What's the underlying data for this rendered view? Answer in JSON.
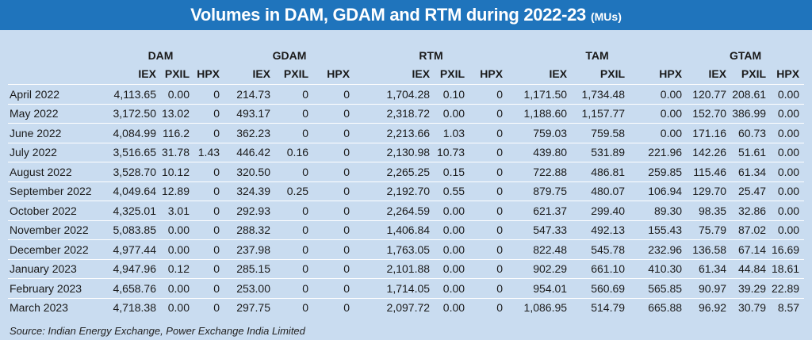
{
  "title": "Volumes in DAM, GDAM and RTM during 2022-23",
  "unit": "(MUs)",
  "groups": [
    "DAM",
    "GDAM",
    "RTM",
    "TAM",
    "GTAM"
  ],
  "subheaders": [
    [
      "IEX",
      "PXIL",
      "HPX"
    ],
    [
      "IEX",
      "PXIL",
      "HPX"
    ],
    [
      "IEX",
      "PXIL",
      "HPX"
    ],
    [
      "IEX",
      "PXIL",
      "HPX"
    ],
    [
      "IEX",
      "PXIL",
      "HPX"
    ]
  ],
  "rows": [
    [
      "April 2022",
      "4,113.65",
      "0.00",
      "0",
      "214.73",
      "0",
      "0",
      "1,704.28",
      "0.10",
      "0",
      "1,171.50",
      "1,734.48",
      "0.00",
      "120.77",
      "208.61",
      "0.00"
    ],
    [
      "May 2022",
      "3,172.50",
      "13.02",
      "0",
      "493.17",
      "0",
      "0",
      "2,318.72",
      "0.00",
      "0",
      "1,188.60",
      "1,157.77",
      "0.00",
      "152.70",
      "386.99",
      "0.00"
    ],
    [
      "June 2022",
      "4,084.99",
      "116.2",
      "0",
      "362.23",
      "0",
      "0",
      "2,213.66",
      "1.03",
      "0",
      "759.03",
      "759.58",
      "0.00",
      "171.16",
      "60.73",
      "0.00"
    ],
    [
      "July 2022",
      "3,516.65",
      "31.78",
      "1.43",
      "446.42",
      "0.16",
      "0",
      "2,130.98",
      "10.73",
      "0",
      "439.80",
      "531.89",
      "221.96",
      "142.26",
      "51.61",
      "0.00"
    ],
    [
      "August 2022",
      "3,528.70",
      "10.12",
      "0",
      "320.50",
      "0",
      "0",
      "2,265.25",
      "0.15",
      "0",
      "722.88",
      "486.81",
      "259.85",
      "115.46",
      "61.34",
      "0.00"
    ],
    [
      "September 2022",
      "4,049.64",
      "12.89",
      "0",
      "324.39",
      "0.25",
      "0",
      "2,192.70",
      "0.55",
      "0",
      "879.75",
      "480.07",
      "106.94",
      "129.70",
      "25.47",
      "0.00"
    ],
    [
      "October 2022",
      "4,325.01",
      "3.01",
      "0",
      "292.93",
      "0",
      "0",
      "2,264.59",
      "0.00",
      "0",
      "621.37",
      "299.40",
      "89.30",
      "98.35",
      "32.86",
      "0.00"
    ],
    [
      "November 2022",
      "5,083.85",
      "0.00",
      "0",
      "288.32",
      "0",
      "0",
      "1,406.84",
      "0.00",
      "0",
      "547.33",
      "492.13",
      "155.43",
      "75.79",
      "87.02",
      "0.00"
    ],
    [
      "December 2022",
      "4,977.44",
      "0.00",
      "0",
      "237.98",
      "0",
      "0",
      "1,763.05",
      "0.00",
      "0",
      "822.48",
      "545.78",
      "232.96",
      "136.58",
      "67.14",
      "16.69"
    ],
    [
      "January 2023",
      "4,947.96",
      "0.12",
      "0",
      "285.15",
      "0",
      "0",
      "2,101.88",
      "0.00",
      "0",
      "902.29",
      "661.10",
      "410.30",
      "61.34",
      "44.84",
      "18.61"
    ],
    [
      "February 2023",
      "4,658.76",
      "0.00",
      "0",
      "253.00",
      "0",
      "0",
      "1,714.05",
      "0.00",
      "0",
      "954.01",
      "560.69",
      "565.85",
      "90.97",
      "39.29",
      "22.89"
    ],
    [
      "March 2023",
      "4,718.38",
      "0.00",
      "0",
      "297.75",
      "0",
      "0",
      "2,097.72",
      "0.00",
      "0",
      "1,086.95",
      "514.79",
      "665.88",
      "96.92",
      "30.79",
      "8.57"
    ]
  ],
  "source": "Source: Indian Energy Exchange, Power Exchange India Limited",
  "colors": {
    "title_bg": "#1f74bc",
    "page_bg": "#c9dcf0",
    "divider": "#ffffff"
  }
}
